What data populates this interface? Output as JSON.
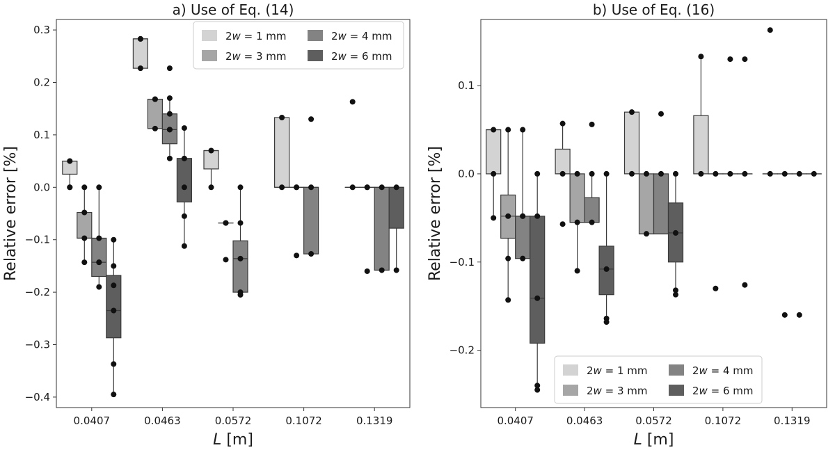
{
  "chart_data": [
    {
      "id": "a",
      "type": "box",
      "title": "a) Use of Eq. (14)",
      "xlabel_var": "L",
      "xlabel_unit": " [m]",
      "ylabel": "Relative error [%]",
      "categories": [
        "0.0407",
        "0.0463",
        "0.0572",
        "0.1072",
        "0.1319"
      ],
      "ylim": [
        -0.42,
        0.32
      ],
      "yticks": [
        -0.4,
        -0.3,
        -0.2,
        -0.1,
        0.0,
        0.1,
        0.2,
        0.3
      ],
      "ytick_labels": [
        "−0.4",
        "−0.3",
        "−0.2",
        "−0.1",
        "0.0",
        "0.1",
        "0.2",
        "0.3"
      ],
      "legend_position": "top-right",
      "series": [
        {
          "name": "1 mm",
          "color": "#d3d3d3",
          "boxes": [
            {
              "q1": 0.025,
              "median": 0.05,
              "q3": 0.05,
              "wlo": 0.0,
              "whi": 0.05,
              "points": [
                0.05,
                0.05,
                0.0,
                0.0
              ]
            },
            {
              "q1": 0.227,
              "median": 0.283,
              "q3": 0.283,
              "wlo": 0.227,
              "whi": 0.283,
              "points": [
                0.283,
                0.283,
                0.227
              ]
            },
            {
              "q1": 0.035,
              "median": 0.07,
              "q3": 0.07,
              "wlo": 0.0,
              "whi": 0.07,
              "points": [
                0.07,
                0.0
              ]
            },
            {
              "q1": 0.0,
              "median": 0.0,
              "q3": 0.133,
              "wlo": 0.0,
              "whi": 0.133,
              "points": [
                0.133,
                0.0
              ]
            },
            {
              "q1": 0.0,
              "median": 0.0,
              "q3": 0.0,
              "wlo": 0.0,
              "whi": 0.0,
              "points": [
                0.0,
                0.163
              ]
            }
          ]
        },
        {
          "name": "3 mm",
          "color": "#a6a6a6",
          "boxes": [
            {
              "q1": -0.097,
              "median": -0.097,
              "q3": -0.048,
              "wlo": -0.143,
              "whi": 0.0,
              "points": [
                0.0,
                -0.048,
                -0.097,
                -0.143
              ]
            },
            {
              "q1": 0.112,
              "median": 0.168,
              "q3": 0.168,
              "wlo": 0.112,
              "whi": 0.168,
              "points": [
                0.168,
                0.168,
                0.112
              ]
            },
            {
              "q1": -0.068,
              "median": -0.068,
              "q3": -0.068,
              "wlo": -0.068,
              "whi": -0.068,
              "points": [
                -0.068,
                -0.068,
                -0.138
              ]
            },
            {
              "q1": 0.0,
              "median": 0.0,
              "q3": 0.0,
              "wlo": 0.0,
              "whi": 0.0,
              "points": [
                0.0,
                0.0,
                -0.13
              ]
            },
            {
              "q1": 0.0,
              "median": 0.0,
              "q3": 0.0,
              "wlo": 0.0,
              "whi": 0.0,
              "points": [
                0.0,
                0.0,
                -0.16
              ]
            }
          ]
        },
        {
          "name": "4 mm",
          "color": "#838383",
          "boxes": [
            {
              "q1": -0.17,
              "median": -0.143,
              "q3": -0.097,
              "wlo": -0.19,
              "whi": 0.0,
              "points": [
                0.0,
                -0.097,
                -0.143,
                -0.143,
                -0.19
              ]
            },
            {
              "q1": 0.083,
              "median": 0.11,
              "q3": 0.14,
              "wlo": 0.055,
              "whi": 0.17,
              "points": [
                0.17,
                0.14,
                0.11,
                0.11,
                0.055,
                0.227
              ]
            },
            {
              "q1": -0.2,
              "median": -0.136,
              "q3": -0.102,
              "wlo": -0.205,
              "whi": 0.0,
              "points": [
                0.0,
                -0.068,
                -0.136,
                -0.2,
                -0.205
              ]
            },
            {
              "q1": -0.127,
              "median": 0.0,
              "q3": 0.0,
              "wlo": -0.127,
              "whi": 0.0,
              "points": [
                0.0,
                -0.127,
                0.13
              ]
            },
            {
              "q1": -0.158,
              "median": 0.0,
              "q3": 0.0,
              "wlo": -0.158,
              "whi": 0.0,
              "points": [
                0.0,
                -0.158
              ]
            }
          ]
        },
        {
          "name": "6 mm",
          "color": "#5e5e5e",
          "boxes": [
            {
              "q1": -0.287,
              "median": -0.235,
              "q3": -0.168,
              "wlo": -0.395,
              "whi": -0.1,
              "points": [
                -0.1,
                -0.15,
                -0.187,
                -0.235,
                -0.337,
                -0.395
              ]
            },
            {
              "q1": -0.028,
              "median": 0.055,
              "q3": 0.055,
              "wlo": -0.112,
              "whi": 0.113,
              "points": [
                0.113,
                0.055,
                0.0,
                -0.055,
                -0.112
              ]
            },
            null,
            null,
            {
              "q1": -0.078,
              "median": 0.0,
              "q3": 0.0,
              "wlo": -0.158,
              "whi": 0.0,
              "points": [
                0.0,
                -0.158
              ]
            }
          ]
        }
      ]
    },
    {
      "id": "b",
      "type": "box",
      "title": "b) Use of Eq. (16)",
      "xlabel_var": "L",
      "xlabel_unit": " [m]",
      "ylabel": "Relative error [%]",
      "categories": [
        "0.0407",
        "0.0463",
        "0.0572",
        "0.1072",
        "0.1319"
      ],
      "ylim": [
        -0.265,
        0.175
      ],
      "yticks": [
        -0.2,
        -0.1,
        0.0,
        0.1
      ],
      "ytick_labels": [
        "−0.2",
        "−0.1",
        "0.0",
        "0.1"
      ],
      "legend_position": "bottom-center",
      "series": [
        {
          "name": "1 mm",
          "color": "#d3d3d3",
          "boxes": [
            {
              "q1": 0.0,
              "median": 0.05,
              "q3": 0.05,
              "wlo": -0.05,
              "whi": 0.05,
              "points": [
                0.05,
                0.0,
                -0.05
              ]
            },
            {
              "q1": 0.0,
              "median": 0.0,
              "q3": 0.028,
              "wlo": 0.0,
              "whi": 0.057,
              "points": [
                0.057,
                0.0,
                -0.057
              ]
            },
            {
              "q1": 0.0,
              "median": 0.0,
              "q3": 0.07,
              "wlo": 0.0,
              "whi": 0.07,
              "points": [
                0.07,
                0.0
              ]
            },
            {
              "q1": 0.0,
              "median": 0.0,
              "q3": 0.066,
              "wlo": 0.0,
              "whi": 0.133,
              "points": [
                0.133,
                0.0
              ]
            },
            {
              "q1": 0.0,
              "median": 0.0,
              "q3": 0.0,
              "wlo": 0.0,
              "whi": 0.0,
              "points": [
                0.0,
                0.163
              ]
            }
          ]
        },
        {
          "name": "3 mm",
          "color": "#a6a6a6",
          "boxes": [
            {
              "q1": -0.073,
              "median": -0.048,
              "q3": -0.024,
              "wlo": -0.143,
              "whi": 0.05,
              "points": [
                0.05,
                -0.048,
                -0.096,
                -0.143
              ]
            },
            {
              "q1": -0.055,
              "median": -0.055,
              "q3": 0.0,
              "wlo": -0.11,
              "whi": 0.0,
              "points": [
                0.0,
                -0.055,
                -0.11
              ]
            },
            {
              "q1": -0.068,
              "median": -0.068,
              "q3": 0.0,
              "wlo": -0.068,
              "whi": 0.0,
              "points": [
                0.0,
                -0.068
              ]
            },
            {
              "q1": 0.0,
              "median": 0.0,
              "q3": 0.0,
              "wlo": 0.0,
              "whi": 0.0,
              "points": [
                0.0,
                -0.13
              ]
            },
            {
              "q1": 0.0,
              "median": 0.0,
              "q3": 0.0,
              "wlo": 0.0,
              "whi": 0.0,
              "points": [
                0.0,
                -0.16
              ]
            }
          ]
        },
        {
          "name": "4 mm",
          "color": "#838383",
          "boxes": [
            {
              "q1": -0.096,
              "median": -0.048,
              "q3": -0.048,
              "wlo": -0.096,
              "whi": 0.05,
              "points": [
                0.05,
                -0.048,
                -0.048,
                -0.096
              ]
            },
            {
              "q1": -0.055,
              "median": -0.055,
              "q3": -0.027,
              "wlo": -0.055,
              "whi": 0.0,
              "points": [
                0.0,
                -0.055,
                0.056
              ]
            },
            {
              "q1": -0.068,
              "median": -0.068,
              "q3": 0.0,
              "wlo": -0.068,
              "whi": 0.0,
              "points": [
                0.0,
                0.068
              ]
            },
            {
              "q1": 0.0,
              "median": 0.0,
              "q3": 0.0,
              "wlo": 0.0,
              "whi": 0.0,
              "points": [
                0.0,
                0.13
              ]
            },
            {
              "q1": 0.0,
              "median": 0.0,
              "q3": 0.0,
              "wlo": 0.0,
              "whi": 0.0,
              "points": [
                0.0,
                -0.16
              ]
            }
          ]
        },
        {
          "name": "6 mm",
          "color": "#5e5e5e",
          "boxes": [
            {
              "q1": -0.192,
              "median": -0.141,
              "q3": -0.048,
              "wlo": -0.245,
              "whi": 0.0,
              "points": [
                0.0,
                -0.048,
                -0.141,
                -0.24,
                -0.245
              ]
            },
            {
              "q1": -0.137,
              "median": -0.108,
              "q3": -0.082,
              "wlo": -0.165,
              "whi": 0.0,
              "points": [
                0.0,
                -0.108,
                -0.164,
                -0.168
              ]
            },
            {
              "q1": -0.1,
              "median": -0.067,
              "q3": -0.033,
              "wlo": -0.135,
              "whi": 0.0,
              "points": [
                0.0,
                -0.067,
                -0.132,
                -0.137
              ]
            },
            {
              "q1": 0.0,
              "median": 0.0,
              "q3": 0.0,
              "wlo": 0.0,
              "whi": 0.0,
              "points": [
                0.0,
                0.13,
                -0.126
              ]
            },
            {
              "q1": 0.0,
              "median": 0.0,
              "q3": 0.0,
              "wlo": 0.0,
              "whi": 0.0,
              "points": [
                0.0
              ]
            }
          ]
        }
      ]
    }
  ],
  "legend": {
    "prefix_num": "2",
    "prefix_var": "w",
    "equals": " = "
  }
}
